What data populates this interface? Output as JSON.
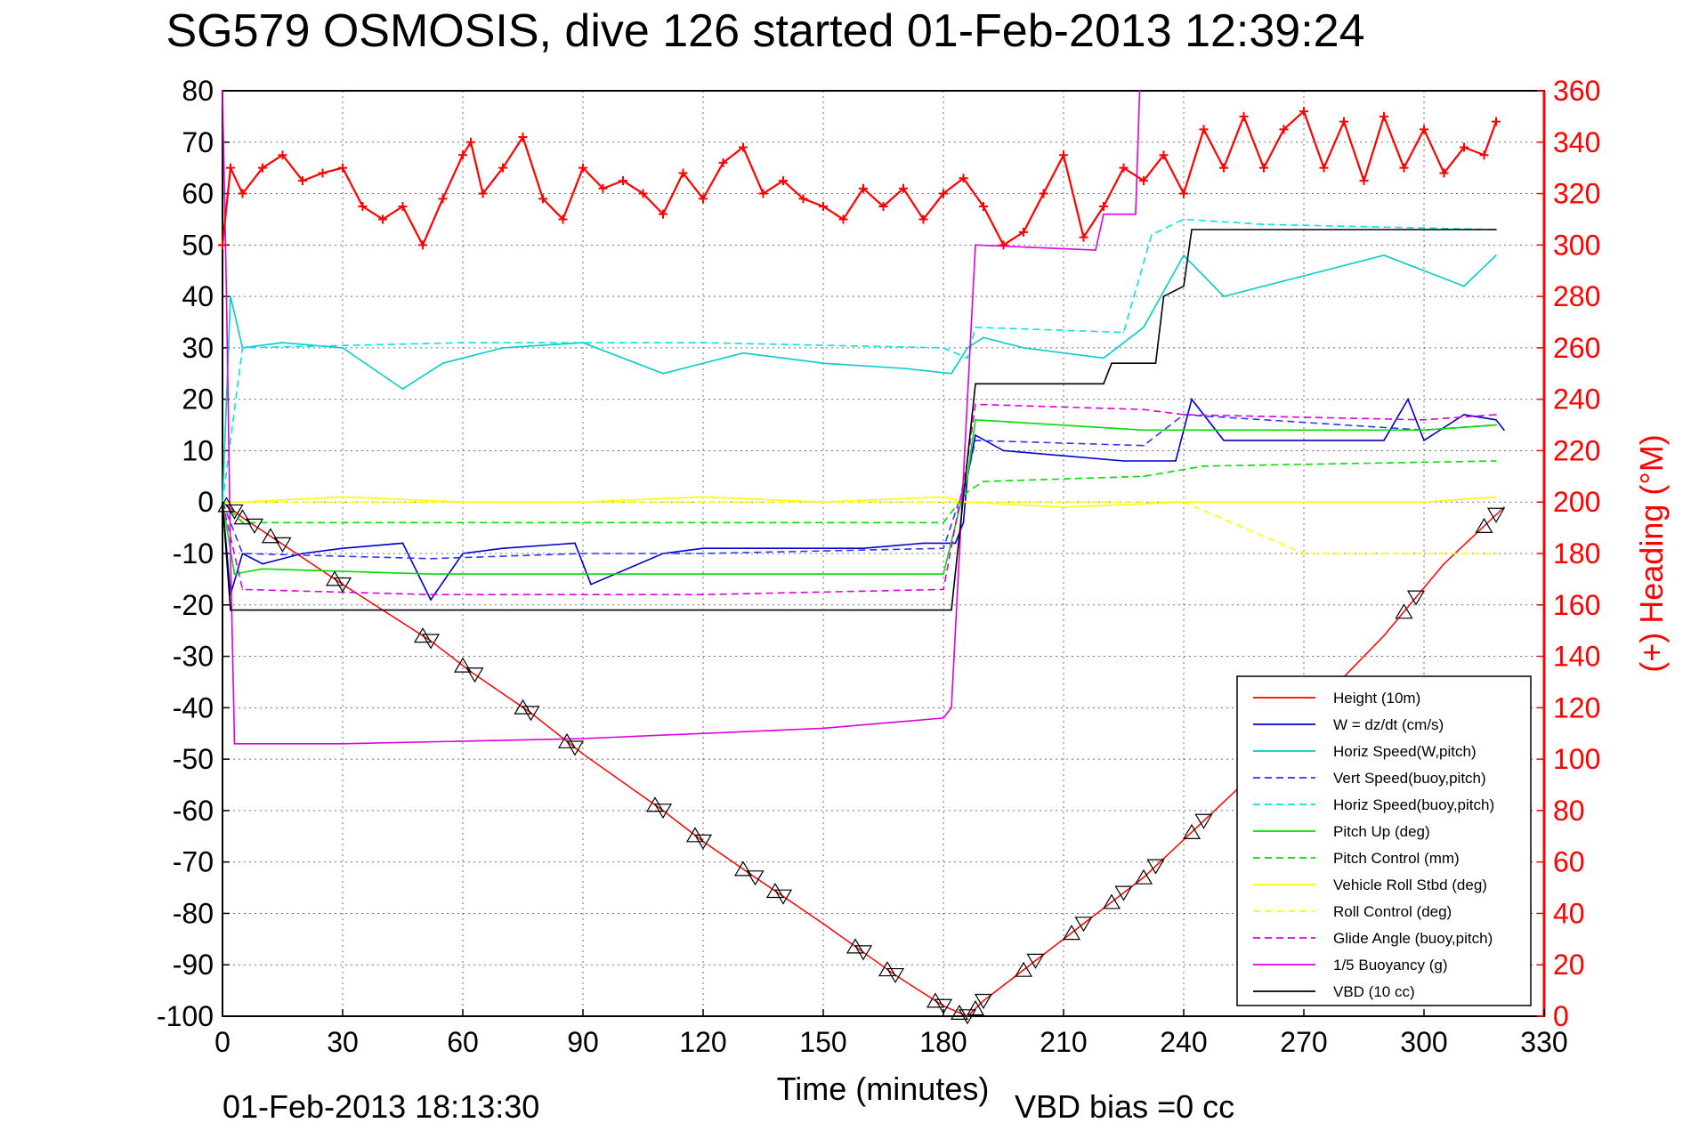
{
  "chart_data": {
    "type": "line",
    "title": "SG579 OSMOSIS, dive 126 started 01-Feb-2013 12:39:24",
    "xlabel": "Time (minutes)",
    "ylabel_right": "(+) Heading (°M)",
    "footer_left": "01-Feb-2013 18:13:30",
    "footer_right": "VBD bias =0 cc",
    "xlim": [
      0,
      330
    ],
    "ylim": [
      -100,
      80
    ],
    "ylim_right": [
      0,
      360
    ],
    "x_ticks": [
      "0",
      "30",
      "60",
      "90",
      "120",
      "150",
      "180",
      "210",
      "240",
      "270",
      "300",
      "330"
    ],
    "y_ticks": [
      "80",
      "70",
      "60",
      "50",
      "40",
      "30",
      "20",
      "10",
      "0",
      "-10",
      "-20",
      "-30",
      "-40",
      "-50",
      "-60",
      "-70",
      "-80",
      "-90",
      "-100"
    ],
    "y_ticks_right": [
      "360",
      "340",
      "320",
      "300",
      "280",
      "260",
      "240",
      "220",
      "200",
      "180",
      "160",
      "140",
      "120",
      "100",
      "80",
      "60",
      "40",
      "20",
      "0"
    ],
    "grid": true,
    "legend_position": "bottom-right",
    "series": [
      {
        "name": "Height (10m)",
        "color": "#ff0000",
        "style": "solid",
        "x": [
          0,
          5,
          30,
          52,
          62,
          77,
          90,
          110,
          120,
          133,
          150,
          168,
          180,
          186,
          190,
          200,
          215,
          230,
          245,
          260,
          275,
          290,
          305,
          320
        ],
        "values": [
          0,
          -3,
          -16,
          -27,
          -33,
          -41,
          -49,
          -60,
          -66,
          -73,
          -82,
          -92,
          -98,
          -100,
          -97,
          -91,
          -82,
          -73,
          -62,
          -51,
          -38,
          -26,
          -12,
          -1
        ]
      },
      {
        "name": "W = dz/dt (cm/s)",
        "color": "#0000cc",
        "style": "solid",
        "x": [
          0,
          2,
          5,
          10,
          20,
          30,
          45,
          52,
          60,
          70,
          88,
          92,
          110,
          120,
          140,
          160,
          175,
          183,
          185,
          186,
          188,
          195,
          210,
          225,
          238,
          242,
          250,
          270,
          290,
          296,
          300,
          310,
          318,
          320
        ],
        "values": [
          0,
          -18,
          -10,
          -12,
          -10,
          -9,
          -8,
          -19,
          -10,
          -9,
          -8,
          -16,
          -10,
          -9,
          -9,
          -9,
          -8,
          -8,
          -4,
          5,
          13,
          10,
          9,
          8,
          8,
          20,
          12,
          12,
          12,
          20,
          12,
          17,
          16,
          14
        ]
      },
      {
        "name": "Horiz Speed(W,pitch)",
        "color": "#00cccc",
        "style": "solid",
        "x": [
          0,
          2,
          5,
          15,
          30,
          45,
          55,
          70,
          90,
          110,
          130,
          150,
          170,
          182,
          186,
          190,
          200,
          220,
          230,
          240,
          250,
          270,
          290,
          310,
          318
        ],
        "values": [
          0,
          40,
          30,
          31,
          30,
          22,
          27,
          30,
          31,
          25,
          29,
          27,
          26,
          25,
          30,
          32,
          30,
          28,
          34,
          48,
          40,
          44,
          48,
          42,
          48
        ]
      },
      {
        "name": "Vert Speed(buoy,pitch)",
        "color": "#3333ff",
        "style": "dashed",
        "x": [
          0,
          5,
          52,
          90,
          120,
          180,
          186,
          188,
          230,
          240,
          300,
          318
        ],
        "values": [
          0,
          -10,
          -11,
          -10,
          -10,
          -9,
          5,
          12,
          11,
          17,
          14,
          15
        ]
      },
      {
        "name": "Horiz Speed(buoy,pitch)",
        "color": "#00e5e5",
        "style": "dashed",
        "x": [
          0,
          5,
          60,
          120,
          180,
          186,
          188,
          225,
          232,
          240,
          260,
          318
        ],
        "values": [
          0,
          30,
          31,
          31,
          30,
          28,
          34,
          33,
          52,
          55,
          54,
          53
        ]
      },
      {
        "name": "Pitch Up (deg)",
        "color": "#00dd00",
        "style": "solid",
        "x": [
          0,
          3,
          10,
          52,
          90,
          120,
          180,
          186,
          188,
          230,
          240,
          300,
          318
        ],
        "values": [
          0,
          -14,
          -13,
          -14,
          -14,
          -14,
          -14,
          5,
          16,
          14,
          14,
          14,
          15
        ]
      },
      {
        "name": "Pitch Control (mm)",
        "color": "#00dd00",
        "style": "dashed",
        "x": [
          0,
          5,
          90,
          180,
          186,
          190,
          230,
          245,
          318
        ],
        "values": [
          0,
          -4,
          -4,
          -4,
          2,
          4,
          5,
          7,
          8
        ]
      },
      {
        "name": "Vehicle Roll Stbd (deg)",
        "color": "#ffff00",
        "style": "solid",
        "x": [
          0,
          5,
          30,
          60,
          90,
          120,
          150,
          180,
          186,
          210,
          240,
          270,
          300,
          318
        ],
        "values": [
          0,
          0,
          1,
          0,
          0,
          1,
          0,
          1,
          0,
          -1,
          0,
          0,
          0,
          1
        ]
      },
      {
        "name": "Roll Control (deg)",
        "color": "#ffff00",
        "style": "dashed",
        "x": [
          0,
          5,
          90,
          180,
          186,
          240,
          270,
          318
        ],
        "values": [
          0,
          0,
          0,
          0,
          0,
          0,
          -10,
          -10
        ]
      },
      {
        "name": "Glide Angle (buoy,pitch)",
        "color": "#dd00dd",
        "style": "dashed",
        "x": [
          0,
          5,
          52,
          90,
          120,
          180,
          186,
          188,
          230,
          240,
          300,
          318
        ],
        "values": [
          0,
          -17,
          -18,
          -18,
          -18,
          -17,
          8,
          19,
          18,
          17,
          16,
          17
        ]
      },
      {
        "name": "1/5 Buoyancy (g)",
        "color": "#dd00dd",
        "style": "solid",
        "x": [
          0,
          1,
          2,
          3,
          30,
          90,
          150,
          180,
          182,
          188,
          218,
          220,
          222,
          228,
          229
        ],
        "values": [
          80,
          40,
          -10,
          -47,
          -47,
          -46,
          -44,
          -42,
          -40,
          50,
          49,
          56,
          56,
          56,
          80
        ]
      },
      {
        "name": "VBD (10 cc)",
        "color": "#000000",
        "style": "solid",
        "x": [
          0,
          2,
          3,
          180,
          182,
          188,
          220,
          222,
          233,
          235,
          240,
          242,
          318
        ],
        "values": [
          0,
          -21,
          -21,
          -21,
          -21,
          23,
          23,
          27,
          27,
          40,
          42,
          53,
          53
        ]
      }
    ],
    "heading_series": {
      "name": "(+) Heading (°M)",
      "color": "#ff0000",
      "marker": "+",
      "x": [
        0,
        2,
        5,
        10,
        15,
        20,
        25,
        30,
        35,
        40,
        45,
        50,
        55,
        60,
        62,
        65,
        70,
        75,
        80,
        85,
        90,
        95,
        100,
        105,
        110,
        115,
        120,
        125,
        130,
        135,
        140,
        145,
        150,
        155,
        160,
        165,
        170,
        175,
        180,
        185,
        190,
        195,
        200,
        205,
        210,
        215,
        220,
        225,
        230,
        235,
        240,
        245,
        250,
        255,
        260,
        265,
        270,
        275,
        280,
        285,
        290,
        295,
        300,
        305,
        310,
        315,
        318
      ],
      "values": [
        300,
        330,
        320,
        330,
        335,
        325,
        328,
        330,
        315,
        310,
        315,
        300,
        318,
        335,
        340,
        320,
        330,
        342,
        318,
        310,
        330,
        322,
        325,
        320,
        312,
        328,
        318,
        332,
        338,
        320,
        325,
        318,
        315,
        310,
        322,
        315,
        322,
        310,
        320,
        326,
        315,
        300,
        305,
        320,
        335,
        303,
        315,
        330,
        325,
        335,
        320,
        345,
        330,
        350,
        330,
        345,
        352,
        330,
        348,
        325,
        350,
        330,
        345,
        328,
        338,
        335,
        348
      ]
    },
    "markers": {
      "down_triangle_x": [
        3,
        8,
        15,
        30,
        52,
        63,
        77,
        88,
        110,
        120,
        133,
        140,
        160,
        168,
        180,
        186,
        190,
        203,
        215,
        225,
        233,
        245,
        262,
        278,
        298,
        318
      ],
      "up_triangle_x": [
        1,
        5,
        12,
        28,
        50,
        60,
        75,
        86,
        108,
        118,
        130,
        138,
        158,
        166,
        178,
        184,
        188,
        200,
        212,
        222,
        230,
        242,
        258,
        275,
        295,
        315
      ]
    }
  }
}
